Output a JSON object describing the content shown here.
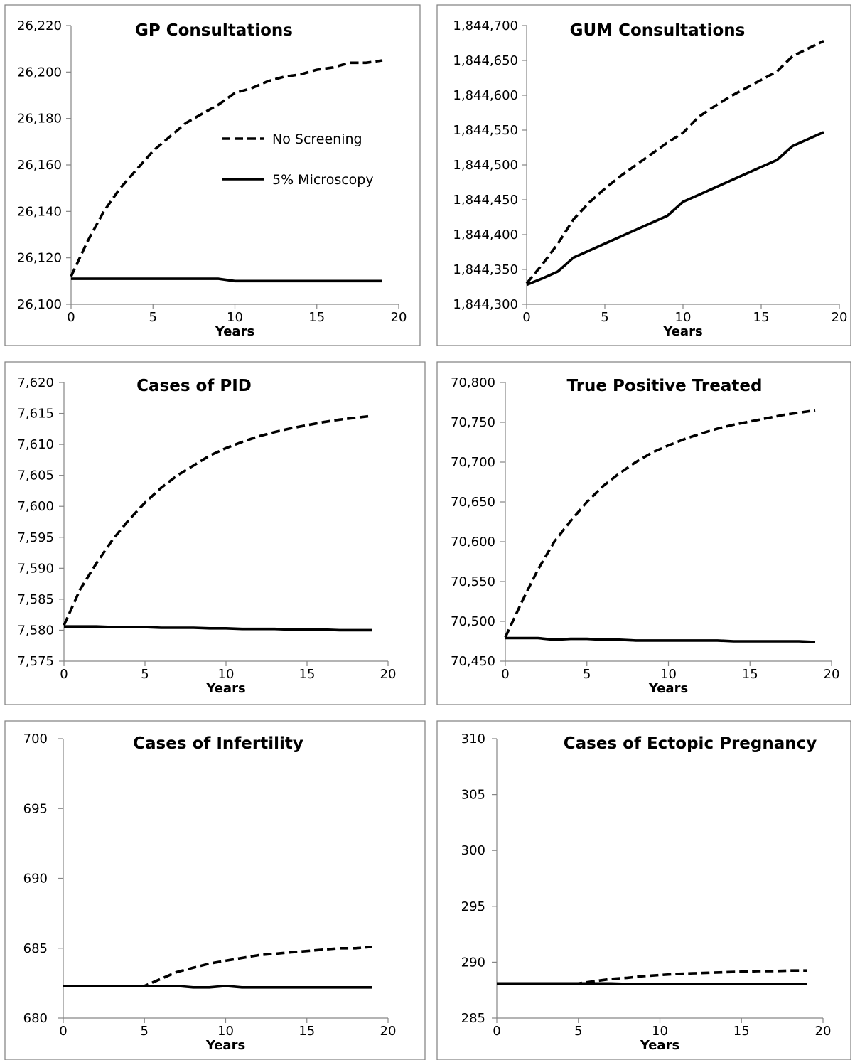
{
  "chart_data": [
    {
      "type": "line",
      "title": "GP Consultations",
      "xlabel": "Years",
      "ylabel": "",
      "xlim": [
        0,
        20
      ],
      "ylim": [
        26100,
        26220
      ],
      "x_ticks": [
        0,
        5,
        10,
        15,
        20
      ],
      "y_ticks": [
        26100,
        26120,
        26140,
        26160,
        26180,
        26200,
        26220
      ],
      "x_tick_labels": [
        "0",
        "5",
        "10",
        "15",
        "20"
      ],
      "y_tick_labels": [
        "26,100",
        "26,120",
        "26,140",
        "26,160",
        "26,180",
        "26,200",
        "26,220"
      ],
      "legend": {
        "position": "inside-right",
        "entries": [
          "No Screening",
          "5% Microscopy"
        ]
      },
      "grid": false,
      "x": [
        0,
        1,
        2,
        3,
        4,
        5,
        6,
        7,
        8,
        9,
        10,
        11,
        12,
        13,
        14,
        15,
        16,
        17,
        18,
        19
      ],
      "series": [
        {
          "name": "No Screening",
          "style": "dashed",
          "values": [
            26112,
            26127,
            26140,
            26150,
            26158,
            26166,
            26172,
            26178,
            26182,
            26186,
            26191,
            26193,
            26196,
            26198,
            26199,
            26201,
            26202,
            26204,
            26204,
            26205
          ]
        },
        {
          "name": "5% Microscopy",
          "style": "solid",
          "values": [
            26111,
            26111,
            26111,
            26111,
            26111,
            26111,
            26111,
            26111,
            26111,
            26111,
            26110,
            26110,
            26110,
            26110,
            26110,
            26110,
            26110,
            26110,
            26110,
            26110
          ]
        }
      ]
    },
    {
      "type": "line",
      "title": "GUM Consultations",
      "xlabel": "Years",
      "ylabel": "",
      "xlim": [
        0,
        20
      ],
      "ylim": [
        1844300,
        1844700
      ],
      "x_ticks": [
        0,
        5,
        10,
        15,
        20
      ],
      "y_ticks": [
        1844300,
        1844350,
        1844400,
        1844450,
        1844500,
        1844550,
        1844600,
        1844650,
        1844700
      ],
      "x_tick_labels": [
        "0",
        "5",
        "10",
        "15",
        "20"
      ],
      "y_tick_labels": [
        "1,844,300",
        "1,844,350",
        "1,844,400",
        "1,844,450",
        "1,844,500",
        "1,844,550",
        "1,844,600",
        "1,844,650",
        "1,844,700"
      ],
      "grid": false,
      "x": [
        0,
        1,
        2,
        3,
        4,
        5,
        6,
        7,
        8,
        9,
        10,
        11,
        12,
        13,
        14,
        15,
        16,
        17,
        18,
        19
      ],
      "series": [
        {
          "name": "No Screening",
          "style": "dashed",
          "values": [
            1844330,
            1844357,
            1844387,
            1844422,
            1844446,
            1844466,
            1844484,
            1844500,
            1844516,
            1844532,
            1844546,
            1844569,
            1844584,
            1844598,
            1844610,
            1844622,
            1844634,
            1844656,
            1844667,
            1844678
          ]
        },
        {
          "name": "5% Microscopy",
          "style": "solid",
          "values": [
            1844328,
            1844337,
            1844347,
            1844367,
            1844377,
            1844387,
            1844397,
            1844407,
            1844417,
            1844427,
            1844447,
            1844457,
            1844467,
            1844477,
            1844487,
            1844497,
            1844507,
            1844527,
            1844537,
            1844547
          ]
        }
      ]
    },
    {
      "type": "line",
      "title": "Cases of PID",
      "xlabel": "Years",
      "ylabel": "",
      "xlim": [
        0,
        20
      ],
      "ylim": [
        7575,
        7620
      ],
      "x_ticks": [
        0,
        5,
        10,
        15,
        20
      ],
      "y_ticks": [
        7575,
        7580,
        7585,
        7590,
        7595,
        7600,
        7605,
        7610,
        7615,
        7620
      ],
      "x_tick_labels": [
        "0",
        "5",
        "10",
        "15",
        "20"
      ],
      "y_tick_labels": [
        "7,575",
        "7,580",
        "7,585",
        "7,590",
        "7,595",
        "7,600",
        "7,605",
        "7,610",
        "7,615",
        "7,620"
      ],
      "grid": false,
      "x": [
        0,
        1,
        2,
        3,
        4,
        5,
        6,
        7,
        8,
        9,
        10,
        11,
        12,
        13,
        14,
        15,
        16,
        17,
        18,
        19
      ],
      "series": [
        {
          "name": "No Screening",
          "style": "dashed",
          "values": [
            7580.8,
            7586.6,
            7590.8,
            7594.6,
            7597.8,
            7600.6,
            7603.0,
            7605.0,
            7606.6,
            7608.2,
            7609.4,
            7610.4,
            7611.3,
            7612.0,
            7612.6,
            7613.1,
            7613.6,
            7614.0,
            7614.3,
            7614.6
          ]
        },
        {
          "name": "5% Microscopy",
          "style": "solid",
          "values": [
            7580.6,
            7580.6,
            7580.6,
            7580.5,
            7580.5,
            7580.5,
            7580.4,
            7580.4,
            7580.4,
            7580.3,
            7580.3,
            7580.2,
            7580.2,
            7580.2,
            7580.1,
            7580.1,
            7580.1,
            7580.0,
            7580.0,
            7580.0
          ]
        }
      ]
    },
    {
      "type": "line",
      "title": "True Positive Treated",
      "xlabel": "Years",
      "ylabel": "",
      "xlim": [
        0,
        20
      ],
      "ylim": [
        70450,
        70800
      ],
      "x_ticks": [
        0,
        5,
        10,
        15,
        20
      ],
      "y_ticks": [
        70450,
        70500,
        70550,
        70600,
        70650,
        70700,
        70750,
        70800
      ],
      "x_tick_labels": [
        "0",
        "5",
        "10",
        "15",
        "20"
      ],
      "y_tick_labels": [
        "70,450",
        "70,500",
        "70,550",
        "70,600",
        "70,650",
        "70,700",
        "70,750",
        "70,800"
      ],
      "grid": false,
      "x": [
        0,
        1,
        2,
        3,
        4,
        5,
        6,
        7,
        8,
        9,
        10,
        11,
        12,
        13,
        14,
        15,
        16,
        17,
        18,
        19
      ],
      "series": [
        {
          "name": "No Screening",
          "style": "dashed",
          "values": [
            70480,
            70524,
            70565,
            70600,
            70626,
            70650,
            70670,
            70686,
            70700,
            70712,
            70721,
            70729,
            70736,
            70742,
            70747,
            70751,
            70755,
            70759,
            70762,
            70765
          ]
        },
        {
          "name": "5% Microscopy",
          "style": "solid",
          "values": [
            70479,
            70479,
            70479,
            70477,
            70478,
            70478,
            70477,
            70477,
            70476,
            70476,
            70476,
            70476,
            70476,
            70476,
            70475,
            70475,
            70475,
            70475,
            70475,
            70474
          ]
        }
      ]
    },
    {
      "type": "line",
      "title": "Cases of Infertility",
      "xlabel": "Years",
      "ylabel": "",
      "xlim": [
        0,
        20
      ],
      "ylim": [
        680,
        700
      ],
      "x_ticks": [
        0,
        5,
        10,
        15,
        20
      ],
      "y_ticks": [
        680,
        685,
        690,
        695,
        700
      ],
      "x_tick_labels": [
        "0",
        "5",
        "10",
        "15",
        "20"
      ],
      "y_tick_labels": [
        "680",
        "685",
        "690",
        "695",
        "700"
      ],
      "grid": false,
      "x": [
        0,
        1,
        2,
        3,
        4,
        5,
        6,
        7,
        8,
        9,
        10,
        11,
        12,
        13,
        14,
        15,
        16,
        17,
        18,
        19
      ],
      "series": [
        {
          "name": "No Screening",
          "style": "dashed",
          "values": [
            682.3,
            682.3,
            682.3,
            682.3,
            682.3,
            682.3,
            682.8,
            683.3,
            683.6,
            683.9,
            684.1,
            684.3,
            684.5,
            684.6,
            684.7,
            684.8,
            684.9,
            685.0,
            685.0,
            685.1
          ]
        },
        {
          "name": "5% Microscopy",
          "style": "solid",
          "values": [
            682.3,
            682.3,
            682.3,
            682.3,
            682.3,
            682.3,
            682.3,
            682.3,
            682.2,
            682.2,
            682.3,
            682.2,
            682.2,
            682.2,
            682.2,
            682.2,
            682.2,
            682.2,
            682.2,
            682.2
          ]
        }
      ]
    },
    {
      "type": "line",
      "title": "Cases of Ectopic Pregnancy",
      "xlabel": "Years",
      "ylabel": "",
      "xlim": [
        0,
        20
      ],
      "ylim": [
        285,
        310
      ],
      "x_ticks": [
        0,
        5,
        10,
        15,
        20
      ],
      "y_ticks": [
        285,
        290,
        295,
        300,
        305,
        310
      ],
      "x_tick_labels": [
        "0",
        "5",
        "10",
        "15",
        "20"
      ],
      "y_tick_labels": [
        "285",
        "290",
        "295",
        "300",
        "305",
        "310"
      ],
      "grid": false,
      "x": [
        0,
        1,
        2,
        3,
        4,
        5,
        6,
        7,
        8,
        9,
        10,
        11,
        12,
        13,
        14,
        15,
        16,
        17,
        18,
        19
      ],
      "series": [
        {
          "name": "No Screening",
          "style": "dashed",
          "values": [
            288.1,
            288.1,
            288.1,
            288.1,
            288.1,
            288.1,
            288.3,
            288.5,
            288.6,
            288.75,
            288.85,
            288.95,
            289.0,
            289.05,
            289.1,
            289.15,
            289.2,
            289.2,
            289.25,
            289.25
          ]
        },
        {
          "name": "5% Microscopy",
          "style": "solid",
          "values": [
            288.1,
            288.1,
            288.1,
            288.1,
            288.1,
            288.1,
            288.1,
            288.1,
            288.05,
            288.05,
            288.05,
            288.05,
            288.05,
            288.05,
            288.05,
            288.05,
            288.05,
            288.05,
            288.05,
            288.05
          ]
        }
      ]
    }
  ]
}
